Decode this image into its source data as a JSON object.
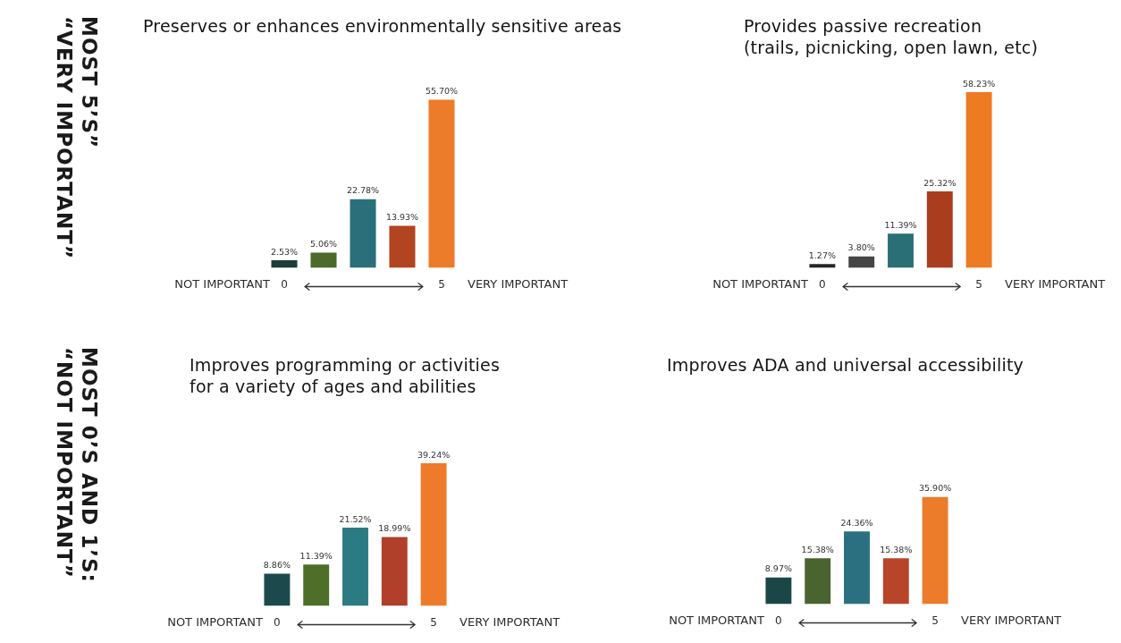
{
  "chart_data": [
    {
      "type": "bar",
      "title": "Preserves or enhances environmentally sensitive areas",
      "categories": [
        "0",
        null,
        null,
        null,
        "5"
      ],
      "values": [
        2.53,
        5.06,
        22.78,
        13.93,
        55.7
      ],
      "value_labels": [
        "2.53%",
        "5.06%",
        "22.78%",
        "13.93%",
        "55.70%"
      ],
      "colors": [
        "#1d3d38",
        "#4b6a2c",
        "#2b6f7b",
        "#b2441f",
        "#ec7b2a"
      ],
      "tick_labels": "x",
      "annotations": [
        "NOT IMPORTANT",
        "VERY IMPORTANT",
        "MOST 5’S”\n“VERY IMPORTANT”"
      ]
    },
    {
      "type": "bar",
      "title": "Provides passive recreation\n(trails, picnicking, open lawn, etc)",
      "categories": [
        "0",
        null,
        null,
        null,
        "5"
      ],
      "values": [
        1.27,
        3.8,
        11.39,
        25.32,
        58.23
      ],
      "value_labels": [
        "1.27%",
        "3.80%",
        "11.39%",
        "25.32%",
        "58.23%"
      ],
      "colors": [
        "#262626",
        "#454545",
        "#2a6f76",
        "#aa3d1e",
        "#ee7a22"
      ],
      "tick_labels": "x",
      "annotations": [
        "NOT IMPORTANT",
        "VERY IMPORTANT"
      ]
    },
    {
      "type": "bar",
      "title": "Improves programming or activities\nfor a variety of ages and abilities",
      "categories": [
        "0",
        null,
        null,
        null,
        "5"
      ],
      "values": [
        8.86,
        11.39,
        21.52,
        18.99,
        39.24
      ],
      "value_labels": [
        "8.86%",
        "11.39%",
        "21.52%",
        "18.99%",
        "39.24%"
      ],
      "colors": [
        "#1c4a4c",
        "#4e6f27",
        "#2b7b82",
        "#b0402a",
        "#ee7b2b"
      ],
      "tick_labels": "x",
      "annotations": [
        "NOT IMPORTANT",
        "VERY IMPORTANT",
        "MOST 0’S AND 1’S:\n“NOT IMPORTANT”"
      ]
    },
    {
      "type": "bar",
      "title": "Improves ADA and universal accessibility",
      "categories": [
        "0",
        null,
        null,
        null,
        "5"
      ],
      "values": [
        8.97,
        15.38,
        24.36,
        15.38,
        35.9
      ],
      "value_labels": [
        "8.97%",
        "15.38%",
        "24.36%",
        "15.38%",
        "35.90%"
      ],
      "colors": [
        "#1b4648",
        "#4a6430",
        "#2b7080",
        "#b8452a",
        "#ec7b2a"
      ],
      "tick_labels": "x",
      "annotations": [
        "NOT IMPORTANT",
        "VERY IMPORTANT"
      ]
    }
  ]
}
